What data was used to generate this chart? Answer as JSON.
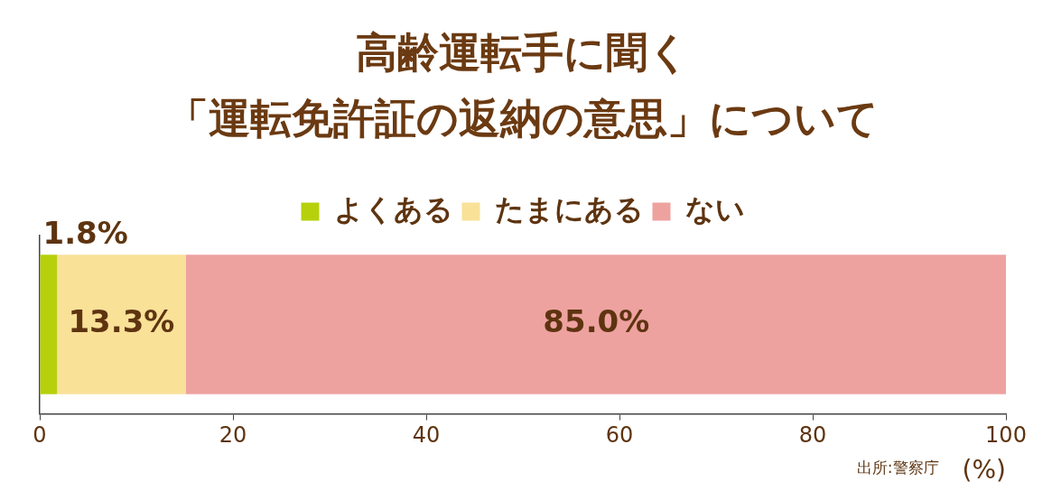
{
  "chart_data": {
    "type": "bar",
    "orientation": "horizontal",
    "stacked": true,
    "title": "高齢運転手に聞く",
    "subtitle": "「運転免許証の返納の意思」について",
    "xlabel": "(%)",
    "categories": [
      null
    ],
    "series": [
      {
        "name": "よくある",
        "color": "#b6d10b",
        "values": [
          1.8
        ],
        "value_labels": [
          "1.8%"
        ]
      },
      {
        "name": "たまにある",
        "color": "#f9e198",
        "values": [
          13.3
        ],
        "value_labels": [
          "13.3%"
        ]
      },
      {
        "name": "ない",
        "color": "#eea2a0",
        "values": [
          85.0
        ],
        "value_labels": [
          "85.0%"
        ]
      }
    ],
    "xlim": [
      0,
      100
    ],
    "xticks": [
      0,
      20,
      40,
      60,
      80,
      100
    ],
    "legend": "top",
    "annotations": [
      "出所:警察庁"
    ]
  }
}
